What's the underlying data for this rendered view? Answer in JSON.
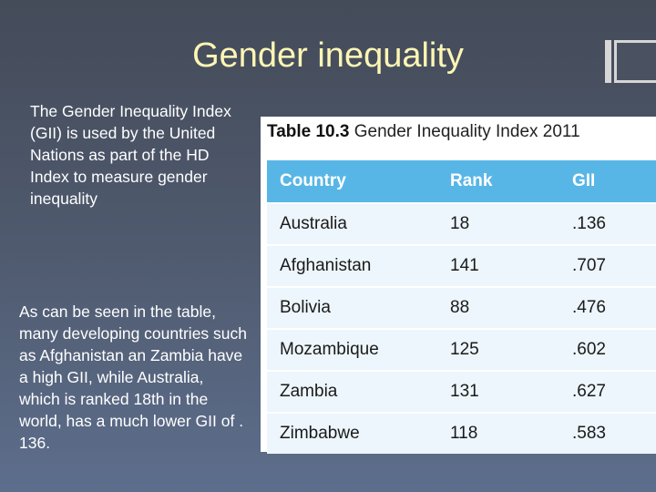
{
  "slide": {
    "title": "Gender inequality",
    "paragraphs": [
      "The Gender Inequality Index (GII) is used by the United Nations as part of the HD Index to measure gender inequality",
      "As can be seen in the table, many developing countries such as Afghanistan an Zambia have a high GII, while Australia, which is ranked 18th in the world, has a much lower GII of . 136."
    ]
  },
  "table": {
    "caption_number": "Table 10.3",
    "caption_text": "Gender Inequality Index 2011",
    "headers": [
      "Country",
      "Rank",
      "GII"
    ],
    "rows": [
      [
        "Australia",
        "18",
        ".136"
      ],
      [
        "Afghanistan",
        "141",
        ".707"
      ],
      [
        "Bolivia",
        "88",
        ".476"
      ],
      [
        "Mozambique",
        "125",
        ".602"
      ],
      [
        "Zambia",
        "131",
        ".627"
      ],
      [
        "Zimbabwe",
        "118",
        ".583"
      ]
    ]
  },
  "colors": {
    "title": "#fdf6b4",
    "header_bg": "#58b6e7",
    "row_bg": "#edf6fc"
  }
}
